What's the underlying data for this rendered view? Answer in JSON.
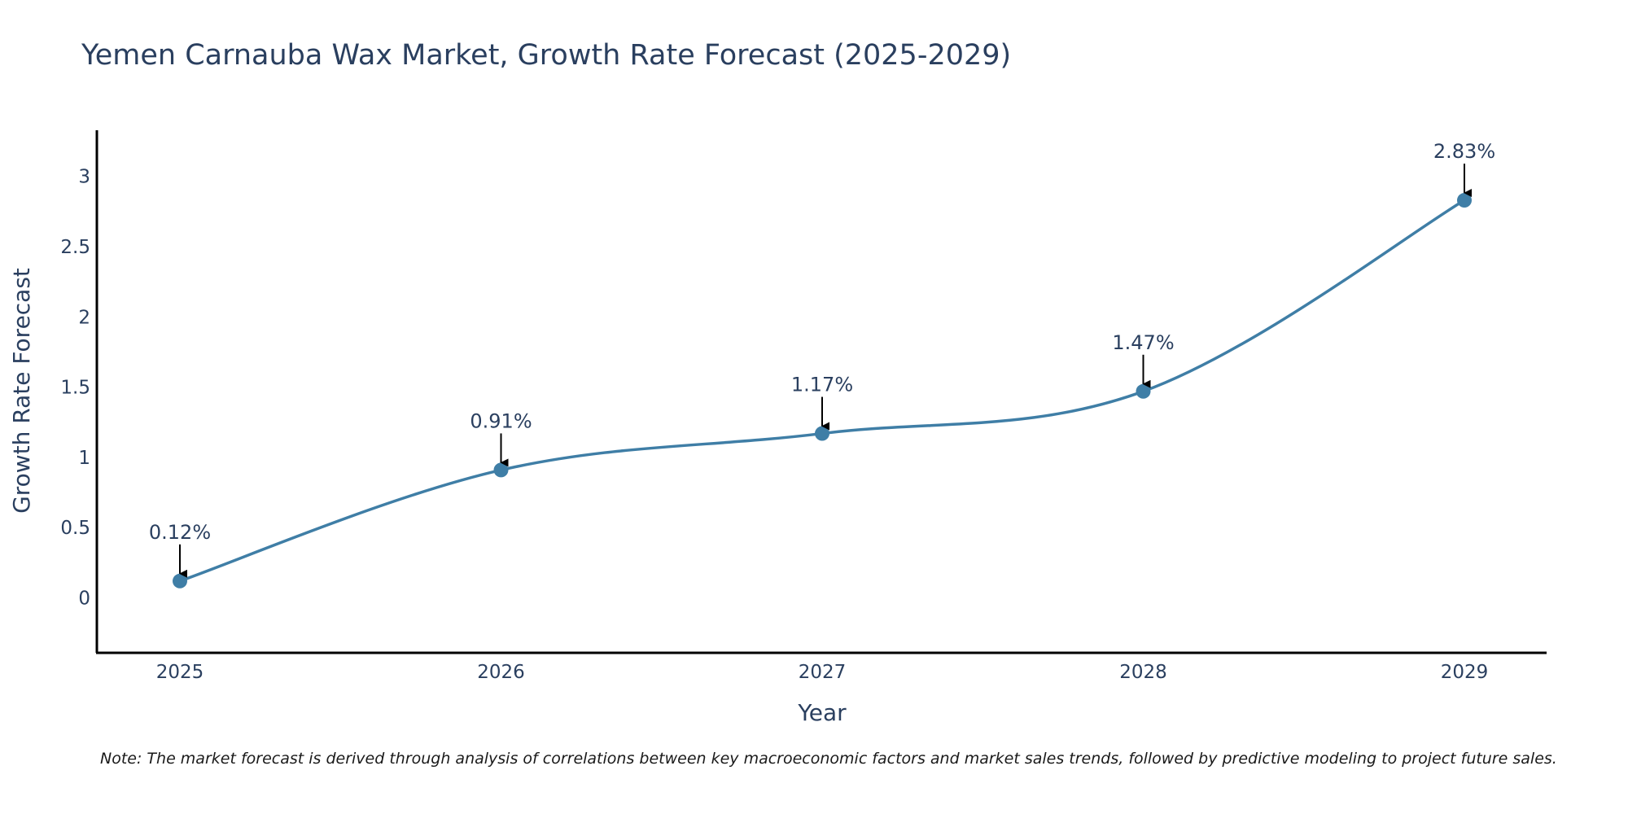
{
  "chart_data": {
    "type": "line",
    "title": "Yemen Carnauba Wax Market, Growth Rate Forecast (2025-2029)",
    "xlabel": "Year",
    "ylabel": "Growth Rate Forecast",
    "categories": [
      "2025",
      "2026",
      "2027",
      "2028",
      "2029"
    ],
    "series": [
      {
        "name": "Growth Rate Forecast",
        "values": [
          0.12,
          0.91,
          1.17,
          1.47,
          2.83
        ],
        "labels": [
          "0.12%",
          "0.91%",
          "1.17%",
          "1.47%",
          "2.83%"
        ]
      }
    ],
    "ylim": [
      -0.4,
      3.3
    ],
    "yticks": [
      0,
      0.5,
      1,
      1.5,
      2,
      2.5,
      3
    ],
    "ytick_labels": [
      "0",
      "0.5",
      "1",
      "1.5",
      "2",
      "2.5",
      "3"
    ],
    "line_shape": "spline",
    "grid": false,
    "colors": {
      "line": "#3f7ea6",
      "marker": "#3f7ea6",
      "arrow": "#000000",
      "text": "#2a3f5f",
      "axis": "#000000"
    }
  },
  "note": "Note: The market forecast is derived through analysis of correlations between key macroeconomic factors and market sales trends, followed by predictive modeling to project future sales."
}
